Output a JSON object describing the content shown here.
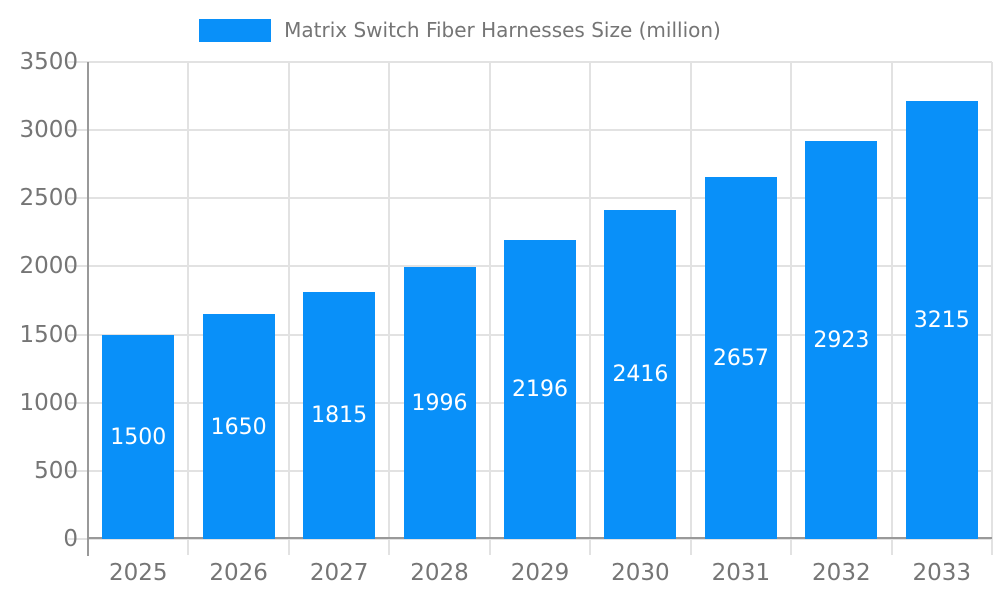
{
  "legend": {
    "label": "Matrix Switch Fiber Harnesses Size (million)",
    "swatch_color": "#0990F9"
  },
  "chart_data": {
    "type": "bar",
    "title": "Matrix Switch Fiber Harnesses Size (million)",
    "series_name": "Matrix Switch Fiber Harnesses Size (million)",
    "categories": [
      "2025",
      "2026",
      "2027",
      "2028",
      "2029",
      "2030",
      "2031",
      "2032",
      "2033"
    ],
    "values": [
      1500,
      1650,
      1815,
      1996,
      2196,
      2416,
      2657,
      2923,
      3215
    ],
    "value_labels": [
      "1500",
      "1650",
      "1815",
      "1996",
      "2196",
      "2416",
      "2657",
      "2923",
      "3215"
    ],
    "xlabel": "",
    "ylabel": "",
    "ylim": [
      0,
      3500
    ],
    "y_tick_step": 500,
    "y_ticks": [
      0,
      500,
      1000,
      1500,
      2000,
      2500,
      3000,
      3500
    ],
    "grid": true,
    "legend_position": "top-center",
    "colors": {
      "bar": "#0990F9",
      "bar_label": "#ffffff",
      "grid": "#e2e2e2",
      "axis_line": "#999999",
      "axis_text": "#757575",
      "background": "#ffffff"
    }
  }
}
